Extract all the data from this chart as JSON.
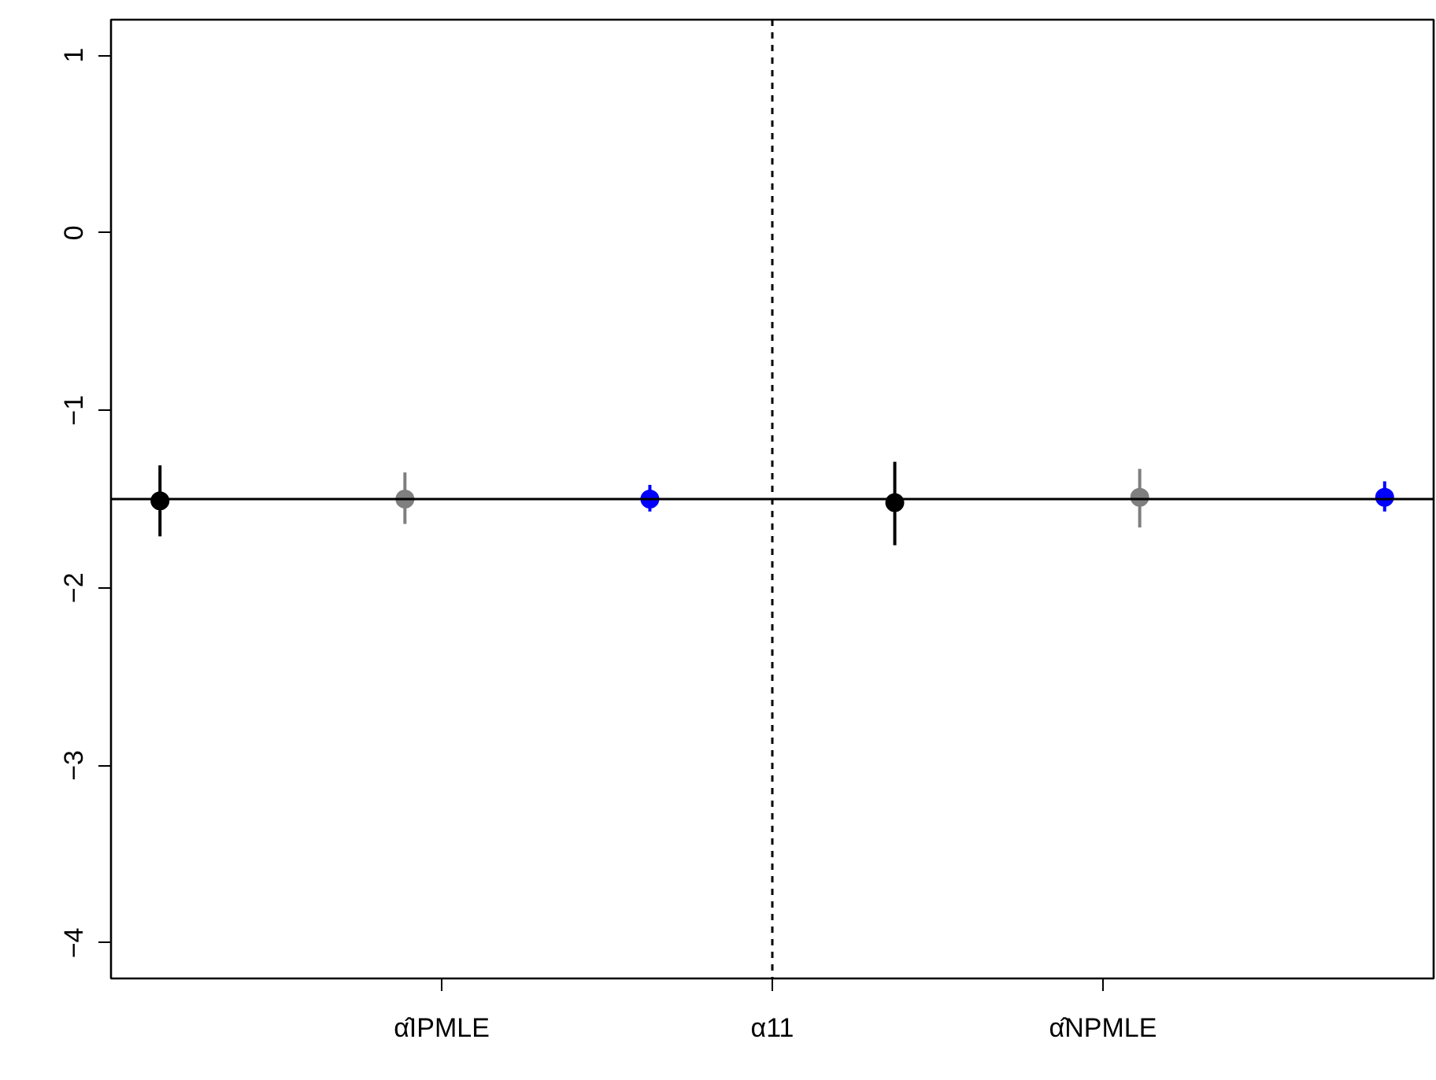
{
  "chart_data": {
    "type": "scatter",
    "categories": [
      null,
      null,
      null,
      null,
      null,
      null
    ],
    "series": [
      {
        "color": "#000000",
        "values": [
          -1.51,
          null,
          null,
          -1.52,
          null,
          null
        ],
        "errors": [
          [
            -1.71,
            -1.31
          ],
          null,
          null,
          [
            -1.76,
            -1.29
          ],
          null,
          null
        ]
      },
      {
        "color": "#7f7f7f",
        "values": [
          null,
          -1.5,
          null,
          null,
          -1.49,
          null
        ],
        "errors": [
          null,
          [
            -1.64,
            -1.35
          ],
          null,
          null,
          [
            -1.66,
            -1.33
          ],
          null
        ]
      },
      {
        "color": "#0000ff",
        "values": [
          null,
          null,
          -1.5,
          null,
          null,
          -1.49
        ],
        "errors": [
          null,
          null,
          [
            -1.57,
            -1.42
          ],
          null,
          null,
          [
            -1.57,
            -1.4
          ]
        ]
      }
    ],
    "ylim": [
      -4.2,
      1.2
    ],
    "yticks": [
      {
        "value": -4,
        "label": "−4"
      },
      {
        "value": -3,
        "label": "−3"
      },
      {
        "value": -2,
        "label": "−2"
      },
      {
        "value": -1,
        "label": "−1"
      },
      {
        "value": 0,
        "label": "0"
      },
      {
        "value": 1,
        "label": "1"
      }
    ],
    "annotations": [
      "α̂IPMLE",
      "α̂NPMLE"
    ],
    "ref_lines": [
      {
        "axis": "y",
        "value": -1.5,
        "color": "#000000",
        "line_style": "solid"
      },
      {
        "axis": "x",
        "label": "α11",
        "color": "#000000",
        "line_style": "dashed"
      }
    ],
    "marker": "circle",
    "grid": false
  }
}
